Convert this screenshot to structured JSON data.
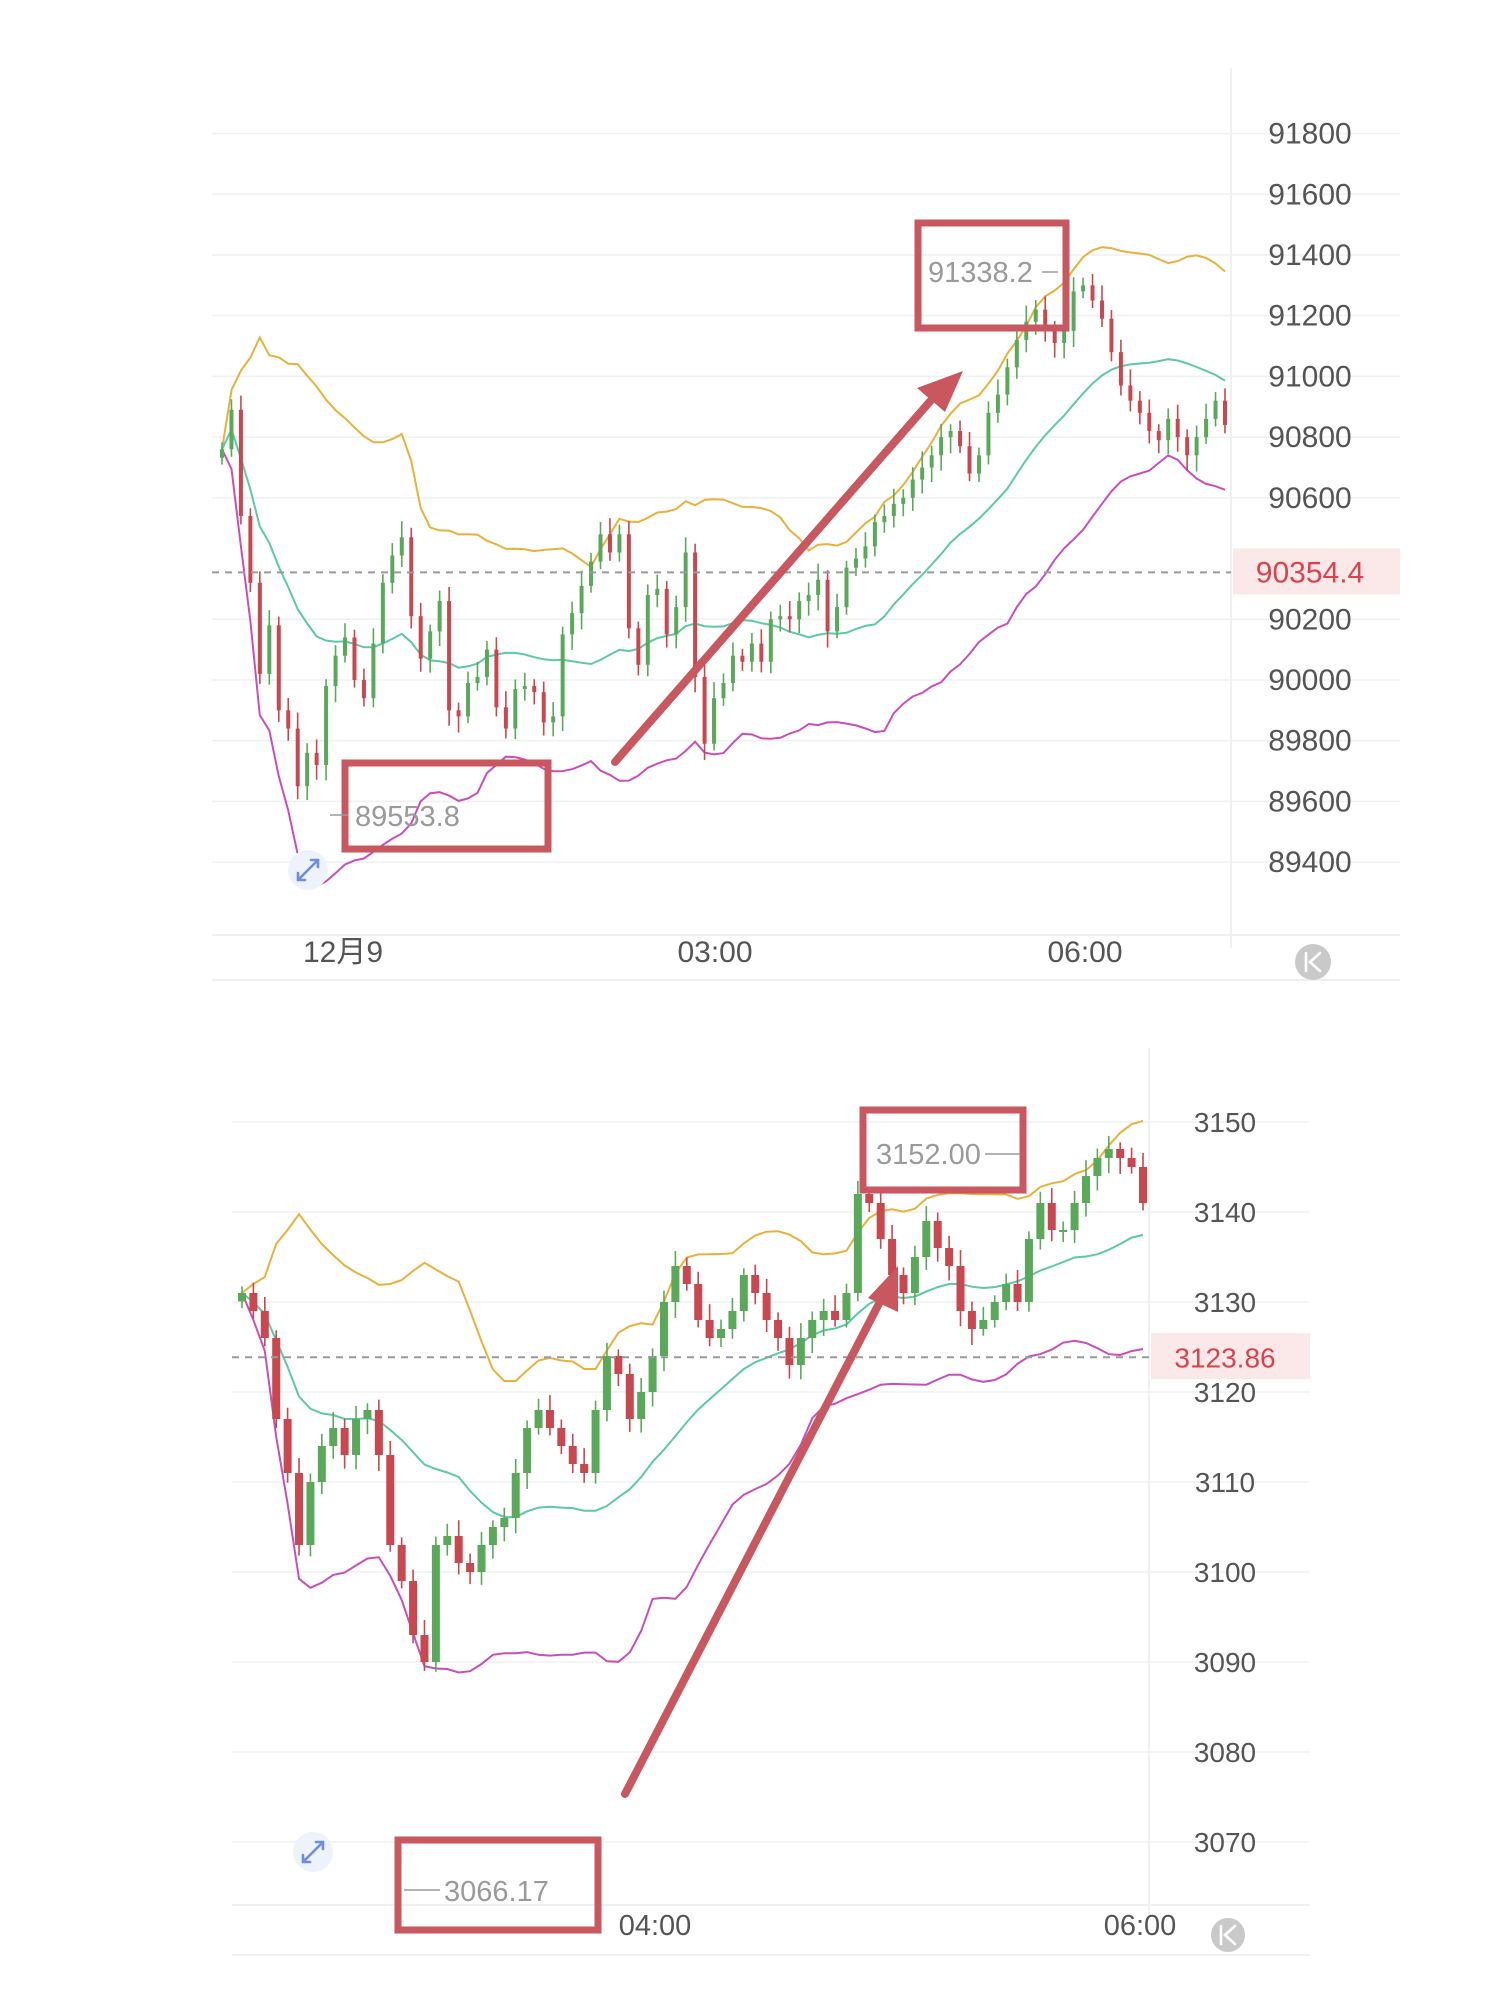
{
  "colors": {
    "up": "#5aa95a",
    "down": "#c9474f",
    "upper_band": "#e7b23c",
    "middle_band": "#5cc9a7",
    "lower_band": "#c84fb8",
    "annotation": "#c8575f",
    "current_price": "#d8434f",
    "current_price_bg": "#fbe9ea",
    "grid": "#eef0f2",
    "axis_text": "#555555"
  },
  "chart_data": [
    {
      "type": "candlestick",
      "indicator": "bollinger-bands",
      "x_ticks": [
        "12月9",
        "03:00",
        "06:00"
      ],
      "y_ticks": [
        91800,
        91600,
        91400,
        91200,
        91000,
        90800,
        90600,
        90200,
        90000,
        89800,
        89600,
        89400
      ],
      "ylim": [
        89150,
        91950
      ],
      "grid": true,
      "current_price": 90354.4,
      "current_price_label": "90354.4",
      "annotations": {
        "high_label": "91338.2",
        "low_label": "89553.8",
        "high_value": 91338.2,
        "low_value": 89553.8
      },
      "close": [
        90760,
        90890,
        90540,
        90320,
        90020,
        90180,
        89900,
        89840,
        89650,
        89760,
        89720,
        89980,
        90080,
        90140,
        90000,
        89940,
        90120,
        90320,
        90410,
        90470,
        90210,
        90070,
        90160,
        90260,
        89900,
        89880,
        89990,
        90010,
        90100,
        89910,
        89840,
        89970,
        89980,
        89960,
        89860,
        89880,
        90150,
        90220,
        90310,
        90390,
        90480,
        90420,
        90480,
        90170,
        90050,
        90280,
        90300,
        90150,
        90240,
        90420,
        90010,
        89790,
        89940,
        89990,
        90080,
        90060,
        90120,
        90060,
        90200,
        90210,
        90200,
        90260,
        90280,
        90330,
        90160,
        90240,
        90370,
        90400,
        90440,
        90520,
        90540,
        90580,
        90600,
        90660,
        90700,
        90740,
        90800,
        90820,
        90770,
        90680,
        90740,
        90880,
        90940,
        91030,
        91120,
        91180,
        91220,
        91160,
        91110,
        91150,
        91280,
        91300,
        91250,
        91190,
        91080,
        90970,
        90920,
        90880,
        90820,
        90790,
        90860,
        90800,
        90740,
        90800,
        90860,
        90920,
        90840
      ]
    },
    {
      "type": "candlestick",
      "indicator": "bollinger-bands",
      "x_ticks": [
        "04:00",
        "06:00"
      ],
      "y_ticks": [
        3150,
        3140,
        3130,
        3120,
        3110,
        3100,
        3090,
        3080,
        3070
      ],
      "ylim": [
        3063,
        3156
      ],
      "grid": true,
      "current_price": 3123.86,
      "current_price_label": "3123.86",
      "annotations": {
        "high_label": "3152.00",
        "low_label": "3066.17",
        "high_value": 3152.0,
        "low_value": 3066.17
      },
      "close": [
        3131,
        3129,
        3126,
        3117,
        3111,
        3103,
        3110,
        3114,
        3116,
        3113,
        3117,
        3118,
        3113,
        3103,
        3099,
        3093,
        3090,
        3103,
        3104,
        3101,
        3100,
        3103,
        3105,
        3106,
        3111,
        3116,
        3118,
        3116,
        3114,
        3112,
        3111,
        3118,
        3124,
        3122,
        3117,
        3120,
        3124,
        3130,
        3134,
        3132,
        3128,
        3126,
        3127,
        3129,
        3133,
        3131,
        3128,
        3126,
        3123,
        3126,
        3128,
        3129,
        3128,
        3131,
        3142,
        3141,
        3137,
        3133,
        3131,
        3135,
        3139,
        3136,
        3134,
        3129,
        3127,
        3128,
        3130,
        3132,
        3130,
        3137,
        3141,
        3138,
        3138,
        3141,
        3144,
        3146,
        3147,
        3146,
        3145,
        3141
      ]
    }
  ]
}
